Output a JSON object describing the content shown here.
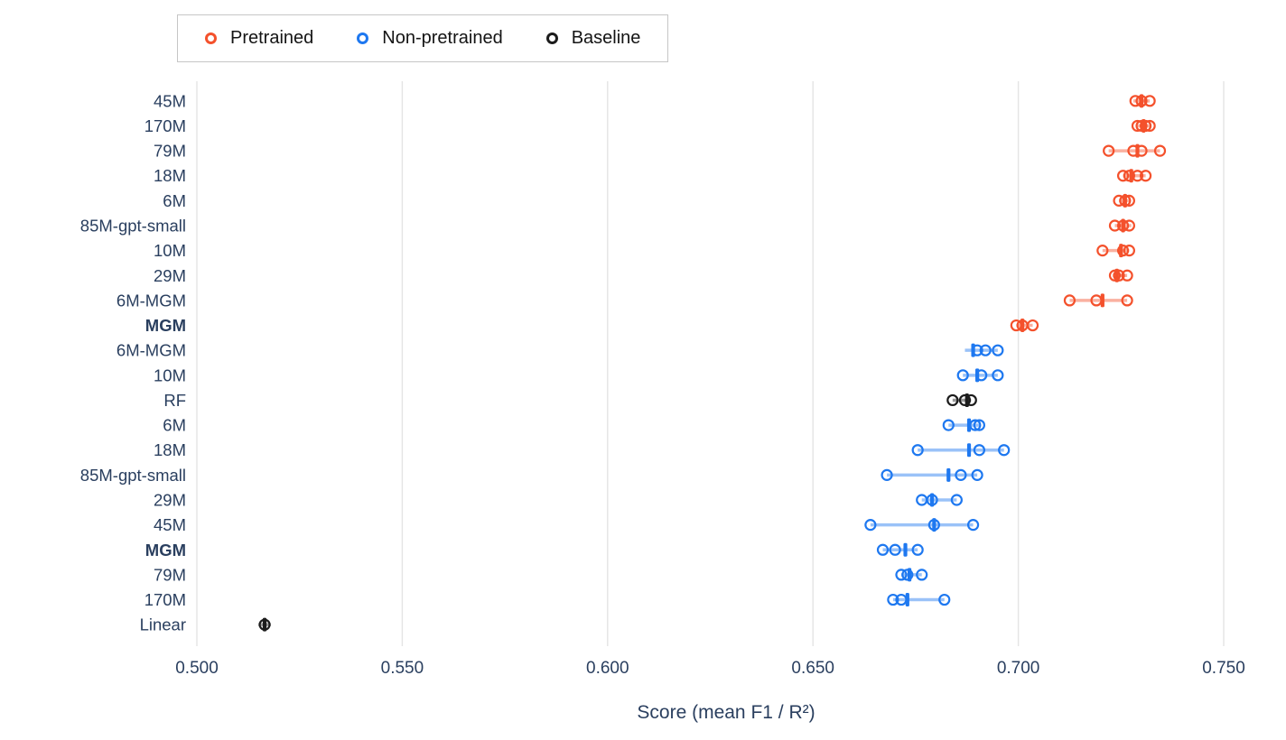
{
  "groups": {
    "pretrained": {
      "label": "Pretrained",
      "color": "#f4512c"
    },
    "non_pretrained": {
      "label": "Non-pretrained",
      "color": "#1e78f0"
    },
    "baseline": {
      "label": "Baseline",
      "color": "#1c1c1c"
    }
  },
  "legend": {
    "order": [
      "pretrained",
      "non_pretrained",
      "baseline"
    ]
  },
  "chart_data": {
    "type": "scatter",
    "title": "",
    "xlabel": "Score (mean F1 / R²)",
    "ylabel": "",
    "xlim": [
      0.488,
      0.758
    ],
    "xticks": [
      0.5,
      0.55,
      0.6,
      0.65,
      0.7,
      0.75
    ],
    "xtick_labels": [
      "0.500",
      "0.550",
      "0.600",
      "0.650",
      "0.700",
      "0.750"
    ],
    "grid": "vertical",
    "legend_position": "top-left",
    "rows": [
      {
        "label": "45M",
        "group": "pretrained",
        "bold": false,
        "points": [
          0.7285,
          0.73,
          0.732
        ],
        "mean": 0.73,
        "range": [
          0.728,
          0.732
        ]
      },
      {
        "label": "170M",
        "group": "pretrained",
        "bold": false,
        "points": [
          0.729,
          0.73,
          0.731,
          0.732
        ],
        "mean": 0.7305,
        "range": [
          0.729,
          0.732
        ]
      },
      {
        "label": "79M",
        "group": "pretrained",
        "bold": false,
        "points": [
          0.722,
          0.728,
          0.73,
          0.7345
        ],
        "mean": 0.729,
        "range": [
          0.722,
          0.7345
        ]
      },
      {
        "label": "18M",
        "group": "pretrained",
        "bold": false,
        "points": [
          0.7255,
          0.727,
          0.729,
          0.731
        ],
        "mean": 0.7275,
        "range": [
          0.7255,
          0.731
        ]
      },
      {
        "label": "6M",
        "group": "pretrained",
        "bold": false,
        "points": [
          0.7245,
          0.726,
          0.727
        ],
        "mean": 0.726,
        "range": [
          0.7245,
          0.727
        ]
      },
      {
        "label": "85M-gpt-small",
        "group": "pretrained",
        "bold": false,
        "points": [
          0.7235,
          0.7255,
          0.727
        ],
        "mean": 0.7255,
        "range": [
          0.7235,
          0.7275
        ]
      },
      {
        "label": "10M",
        "group": "pretrained",
        "bold": false,
        "points": [
          0.7205,
          0.7255,
          0.727
        ],
        "mean": 0.725,
        "range": [
          0.7205,
          0.727
        ]
      },
      {
        "label": "29M",
        "group": "pretrained",
        "bold": false,
        "points": [
          0.7235,
          0.7245,
          0.7265
        ],
        "mean": 0.724,
        "range": [
          0.723,
          0.7265
        ]
      },
      {
        "label": "6M-MGM",
        "group": "pretrained",
        "bold": false,
        "points": [
          0.7125,
          0.719,
          0.7265
        ],
        "mean": 0.7205,
        "range": [
          0.7125,
          0.7265
        ]
      },
      {
        "label": "MGM",
        "group": "pretrained",
        "bold": true,
        "points": [
          0.6995,
          0.701,
          0.7035
        ],
        "mean": 0.701,
        "range": [
          0.6995,
          0.7035
        ]
      },
      {
        "label": "6M-MGM",
        "group": "non_pretrained",
        "bold": false,
        "points": [
          0.69,
          0.692,
          0.695
        ],
        "mean": 0.689,
        "range": [
          0.687,
          0.695
        ]
      },
      {
        "label": "10M",
        "group": "non_pretrained",
        "bold": false,
        "points": [
          0.6865,
          0.691,
          0.695
        ],
        "mean": 0.69,
        "range": [
          0.6865,
          0.695
        ]
      },
      {
        "label": "RF",
        "group": "baseline",
        "bold": false,
        "points": [
          0.684,
          0.687,
          0.6885
        ],
        "mean": 0.6875,
        "range": [
          0.684,
          0.6885
        ]
      },
      {
        "label": "6M",
        "group": "non_pretrained",
        "bold": false,
        "points": [
          0.683,
          0.6895,
          0.6905
        ],
        "mean": 0.688,
        "range": [
          0.683,
          0.6905
        ]
      },
      {
        "label": "18M",
        "group": "non_pretrained",
        "bold": false,
        "points": [
          0.6755,
          0.6905,
          0.6965
        ],
        "mean": 0.688,
        "range": [
          0.6755,
          0.6965
        ]
      },
      {
        "label": "85M-gpt-small",
        "group": "non_pretrained",
        "bold": false,
        "points": [
          0.668,
          0.686,
          0.69
        ],
        "mean": 0.683,
        "range": [
          0.668,
          0.69
        ]
      },
      {
        "label": "29M",
        "group": "non_pretrained",
        "bold": false,
        "points": [
          0.6765,
          0.679,
          0.685
        ],
        "mean": 0.679,
        "range": [
          0.6765,
          0.685
        ]
      },
      {
        "label": "45M",
        "group": "non_pretrained",
        "bold": false,
        "points": [
          0.664,
          0.6795,
          0.689
        ],
        "mean": 0.6795,
        "range": [
          0.664,
          0.689
        ]
      },
      {
        "label": "MGM",
        "group": "non_pretrained",
        "bold": true,
        "points": [
          0.667,
          0.67,
          0.6755
        ],
        "mean": 0.6725,
        "range": [
          0.667,
          0.6755
        ]
      },
      {
        "label": "79M",
        "group": "non_pretrained",
        "bold": false,
        "points": [
          0.6715,
          0.673,
          0.6765
        ],
        "mean": 0.6735,
        "range": [
          0.6715,
          0.6765
        ]
      },
      {
        "label": "170M",
        "group": "non_pretrained",
        "bold": false,
        "points": [
          0.6695,
          0.6715,
          0.682
        ],
        "mean": 0.673,
        "range": [
          0.6695,
          0.682
        ]
      },
      {
        "label": "Linear",
        "group": "baseline",
        "bold": false,
        "points": [
          0.5165
        ],
        "mean": 0.5165,
        "range": [
          0.515,
          0.518
        ]
      }
    ]
  }
}
